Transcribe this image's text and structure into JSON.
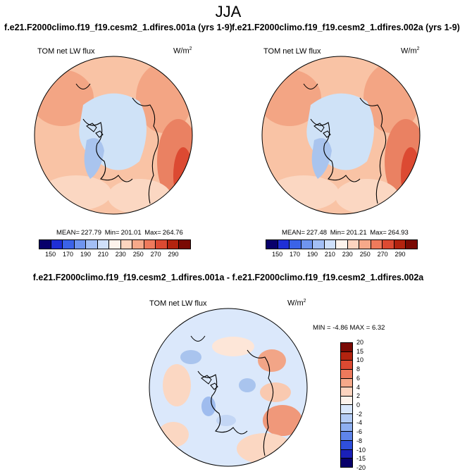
{
  "season": "JJA",
  "panels": [
    {
      "title": "f.e21.F2000climo.f19_f19.cesm2_1.dfires.001a (yrs 1-9)",
      "variable": "TOM net LW flux",
      "units": "W/m",
      "units_exp": "2",
      "stats": {
        "mean_label": "MEAN=",
        "mean": "227.79",
        "min_label": "Min=",
        "min": "201.01",
        "max_label": "Max=",
        "max": "264.76"
      }
    },
    {
      "title": "f.e21.F2000climo.f19_f19.cesm2_1.dfires.002a (yrs 1-9)",
      "variable": "TOM net LW flux",
      "units": "W/m",
      "units_exp": "2",
      "stats": {
        "mean_label": "MEAN=",
        "mean": "227.48",
        "min_label": "Min=",
        "min": "201.21",
        "max_label": "Max=",
        "max": "264.93"
      }
    }
  ],
  "abs_colorbar": {
    "colors": [
      "#08006b",
      "#1f2fd6",
      "#3b63e8",
      "#6f95ef",
      "#a3bff5",
      "#cfe0fa",
      "#fdf3ec",
      "#fcd4bf",
      "#f6a98a",
      "#ee7a5c",
      "#dc4a32",
      "#b3230f",
      "#7a0a04"
    ],
    "labels": [
      "150",
      "170",
      "190",
      "210",
      "230",
      "250",
      "270",
      "290"
    ]
  },
  "difference": {
    "title": "f.e21.F2000climo.f19_f19.cesm2_1.dfires.001a - f.e21.F2000climo.f19_f19.cesm2_1.dfires.002a",
    "variable": "TOM net LW flux",
    "units": "W/m",
    "units_exp": "2",
    "minmax": "MIN =  -4.86 MAX =   6.32",
    "colorbar": {
      "colors": [
        "#7a0a04",
        "#b3230f",
        "#dc4a32",
        "#ee7a5c",
        "#f6a98a",
        "#fcd4bf",
        "#fdf3ec",
        "#d9e7fb",
        "#b3ccf6",
        "#8eaff1",
        "#5f85ea",
        "#2f4fdc",
        "#1a20b8",
        "#08006b"
      ],
      "labels": [
        "20",
        "15",
        "10",
        "8",
        "6",
        "4",
        "2",
        "0",
        "-2",
        "-4",
        "-6",
        "-8",
        "-10",
        "-15",
        "-20"
      ]
    }
  }
}
